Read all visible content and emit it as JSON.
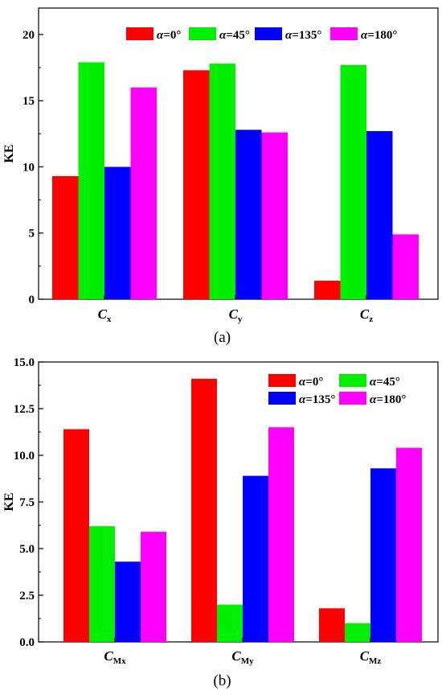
{
  "chart_data": [
    {
      "type": "bar",
      "panel_label": "(a)",
      "ylabel": "KE",
      "ylim": [
        0,
        22
      ],
      "yticks": [
        "0",
        "5",
        "10",
        "15",
        "20"
      ],
      "ytick_values": [
        0,
        5,
        10,
        15,
        20
      ],
      "categories": [
        {
          "base": "C",
          "sub": "x"
        },
        {
          "base": "C",
          "sub": "y"
        },
        {
          "base": "C",
          "sub": "z"
        }
      ],
      "series": [
        {
          "name_var": "α",
          "name_val": "=0°",
          "color": "#ff0000",
          "values": [
            9.3,
            17.3,
            1.4
          ]
        },
        {
          "name_var": "α",
          "name_val": "=45°",
          "color": "#00ee00",
          "values": [
            17.9,
            17.8,
            17.7
          ]
        },
        {
          "name_var": "α",
          "name_val": "=135°",
          "color": "#0000ff",
          "values": [
            10.0,
            12.8,
            12.7
          ]
        },
        {
          "name_var": "α",
          "name_val": "=180°",
          "color": "#ff00ff",
          "values": [
            16.0,
            12.6,
            4.9
          ]
        }
      ],
      "legend": "top, single row"
    },
    {
      "type": "bar",
      "panel_label": "(b)",
      "ylabel": "KE",
      "ylim": [
        0,
        15
      ],
      "yticks": [
        "0.0",
        "2.5",
        "5.0",
        "7.5",
        "10.0",
        "12.5",
        "15.0"
      ],
      "ytick_values": [
        0,
        2.5,
        5,
        7.5,
        10,
        12.5,
        15
      ],
      "categories": [
        {
          "base": "C",
          "sub": "Mx"
        },
        {
          "base": "C",
          "sub": "My"
        },
        {
          "base": "C",
          "sub": "Mz"
        }
      ],
      "series": [
        {
          "name_var": "α",
          "name_val": "=0°",
          "color": "#ff0000",
          "values": [
            11.4,
            14.1,
            1.8
          ]
        },
        {
          "name_var": "α",
          "name_val": "=45°",
          "color": "#00ee00",
          "values": [
            6.2,
            2.0,
            1.0
          ]
        },
        {
          "name_var": "α",
          "name_val": "=135°",
          "color": "#0000ff",
          "values": [
            4.3,
            8.9,
            9.3
          ]
        },
        {
          "name_var": "α",
          "name_val": "=180°",
          "color": "#ff00ff",
          "values": [
            5.9,
            11.5,
            10.4
          ]
        }
      ],
      "legend": "top-right, two rows"
    }
  ]
}
